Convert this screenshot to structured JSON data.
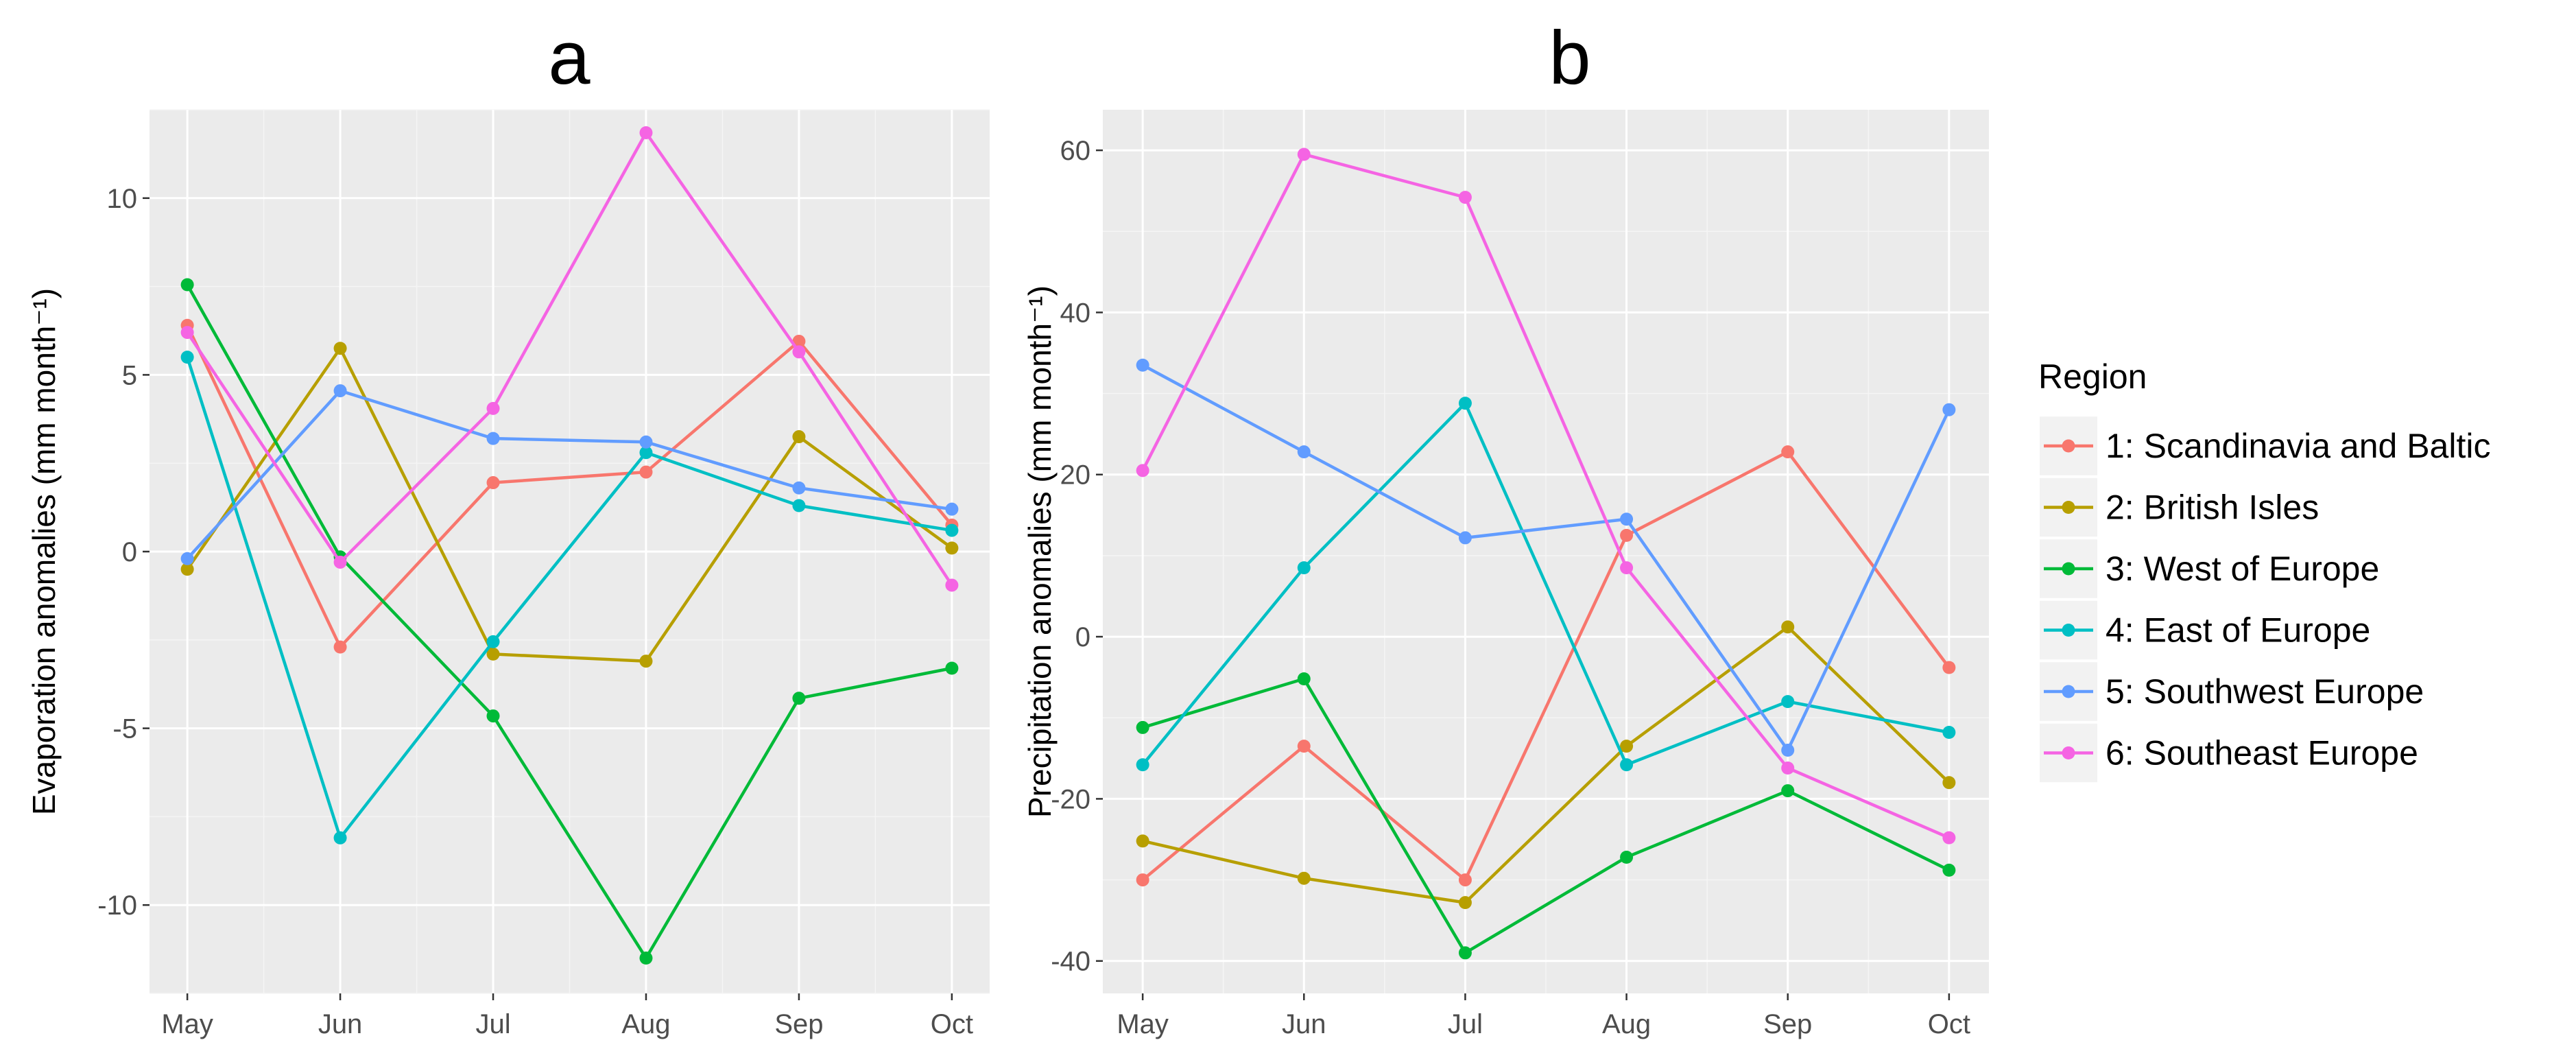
{
  "chart_data": [
    {
      "panel": "a",
      "type": "line",
      "title": "a",
      "xlabel": "",
      "ylabel": "Evaporation anomalies (mm month⁻¹)",
      "categories": [
        "May",
        "Jun",
        "Jul",
        "Aug",
        "Sep",
        "Oct"
      ],
      "ylim": [
        -12.5,
        12.5
      ],
      "yticks": [
        10,
        5,
        0,
        -5,
        -10
      ],
      "ytick_labels": [
        "10",
        "5",
        "0",
        "-5",
        "-10"
      ],
      "grid": true,
      "series": [
        {
          "name": "1:  Scandinavia and Baltic",
          "values": [
            6.4,
            -2.7,
            1.95,
            2.25,
            5.95,
            0.75
          ]
        },
        {
          "name": "2: British Isles",
          "values": [
            -0.5,
            5.75,
            -2.9,
            -3.1,
            3.25,
            0.1
          ]
        },
        {
          "name": "3:  West of Europe",
          "values": [
            7.55,
            -0.15,
            -4.65,
            -11.5,
            -4.15,
            -3.3
          ]
        },
        {
          "name": "4:  East of Europe",
          "values": [
            5.5,
            -8.1,
            -2.55,
            2.8,
            1.3,
            0.6
          ]
        },
        {
          "name": "5:  Southwest Europe",
          "values": [
            -0.2,
            4.55,
            3.2,
            3.1,
            1.8,
            1.2
          ]
        },
        {
          "name": "6:  Southeast Europe",
          "values": [
            6.2,
            -0.3,
            4.05,
            11.85,
            5.65,
            -0.95
          ]
        }
      ]
    },
    {
      "panel": "b",
      "type": "line",
      "title": "b",
      "xlabel": "",
      "ylabel": "Precipitation anomalies (mm month⁻¹)",
      "categories": [
        "May",
        "Jun",
        "Jul",
        "Aug",
        "Sep",
        "Oct"
      ],
      "ylim": [
        -44,
        65
      ],
      "yticks": [
        60,
        40,
        20,
        0,
        -20,
        -40
      ],
      "ytick_labels": [
        "60",
        "40",
        "20",
        "0",
        "-20",
        "-40"
      ],
      "grid": true,
      "series": [
        {
          "name": "1:  Scandinavia and Baltic",
          "values": [
            -30,
            -13.5,
            -30,
            12.5,
            22.8,
            -3.8
          ]
        },
        {
          "name": "2: British Isles",
          "values": [
            -25.2,
            -29.8,
            -32.8,
            -13.5,
            1.2,
            -18
          ]
        },
        {
          "name": "3:  West of Europe",
          "values": [
            -11.2,
            -5.2,
            -39,
            -27.2,
            -19,
            -28.8
          ]
        },
        {
          "name": "4:  East of Europe",
          "values": [
            -15.8,
            8.5,
            28.8,
            -15.8,
            -8,
            -11.8
          ]
        },
        {
          "name": "5:  Southwest Europe",
          "values": [
            33.5,
            22.8,
            12.2,
            14.5,
            -14,
            28
          ]
        },
        {
          "name": "6:  Southeast Europe",
          "values": [
            20.5,
            59.5,
            54.2,
            8.5,
            -16.2,
            -24.8
          ]
        }
      ]
    }
  ],
  "legend": {
    "title": "Region",
    "placement": "right",
    "entries": [
      {
        "label": "1:  Scandinavia and Baltic",
        "color": "#F8766D"
      },
      {
        "label": "2: British Isles",
        "color": "#B79F00"
      },
      {
        "label": "3:  West of Europe",
        "color": "#00BA38"
      },
      {
        "label": "4:  East of Europe",
        "color": "#00BFC4"
      },
      {
        "label": "5:  Southwest Europe",
        "color": "#619CFF"
      },
      {
        "label": "6:  Southeast Europe",
        "color": "#F564E3"
      }
    ]
  },
  "colors": {
    "panel_background": "#EBEBEB",
    "series": [
      "#F8766D",
      "#B79F00",
      "#00BA38",
      "#00BFC4",
      "#619CFF",
      "#F564E3"
    ]
  }
}
